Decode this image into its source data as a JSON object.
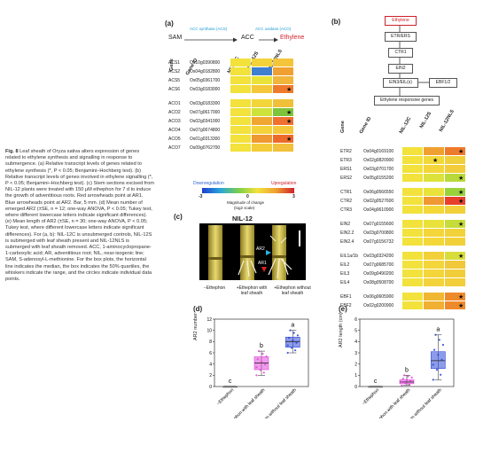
{
  "caption": {
    "label": "Fig. 8",
    "text": "Leaf sheath of Oryza sativa alters expression of genes related to ethylene synthesis and signalling in response to submergence. (a) Relative transcript levels of genes related to ethylene synthesis (*, P < 0.05; Benjamini–Hochberg test). (b) Relative transcript levels of genes involved in ethylene signalling (*, P < 0.05; Benjamini–Hochberg test). (c) Stem sections excised from NIL-12 plants were treated with 150 μM ethephon for 7 d to induce the growth of adventitious roots. Red arrowheads point at AR1. Blue arrowheads point at AR2. Bar, 5 mm. (d) Mean number of emerged AR2 (±SE, n = 12; one-way ANOVA, P < 0.05; Tukey test, where different lowercase letters indicate significant differences). (e) Mean length of AR2 (±SE, n = 30; one-way ANOVA, P < 0.05; Tukey test, where different lowercase letters indicate significant differences). For (a, b): NIL-12C is unsubmerged controls, NIL-12S is submerged with leaf sheath present and NIL-12NLS is submerged with leaf sheath removed. ACC, 1-aminocyclopropane-1-carboxylic acid; AR, adventitious root; NIL, near-isogenic line; SAM, S-adenosyl-L-methionine. For the box plots, the horizontal line indicates the median, the box indicates the 50% quartiles, the whiskers indicate the range, and the circles indicate individual data points."
  },
  "panel_a": {
    "letter": "(a)",
    "pathway": {
      "sam": "SAM",
      "acc": "ACC",
      "ethylene": "Ethylene",
      "acs_label": "ACC synthase (ACS)",
      "aco_label": "ACC oxidase (ACO)"
    },
    "headers": {
      "gene": "Gene",
      "gene_id": "Gene ID",
      "c1": "NIL-12C",
      "c2": "NIL-12S",
      "c3": "NIL-12NLS"
    },
    "rows": [
      {
        "gene": "ACS1",
        "id": "Os10g0390800",
        "colors": [
          "#f2e23b",
          "#f4d23a",
          "#f4c53a"
        ],
        "star": false
      },
      {
        "gene": "ACS2",
        "id": "Os04g0182800",
        "colors": [
          "#f2e23b",
          "#3f7fd0",
          "#f0a030"
        ],
        "star": false
      },
      {
        "gene": "ACS5",
        "id": "Os05g0361700",
        "colors": [
          "#f2e23b",
          "#e8e23a",
          "#f0b53a"
        ],
        "star": false
      },
      {
        "gene": "ACS6",
        "id": "Os03g0183000",
        "colors": [
          "#f2e23b",
          "#f4c83a",
          "#ef7a2c"
        ],
        "star": true
      },
      {
        "gene": "ACO1",
        "id": "Os03g0183300",
        "colors": [
          "#f2e23b",
          "#f2d53a",
          "#f0c03a"
        ],
        "star": false
      },
      {
        "gene": "ACO2",
        "id": "Os07g0617000",
        "colors": [
          "#f2e23b",
          "#cde23a",
          "#7fc33a"
        ],
        "star": true
      },
      {
        "gene": "ACO3",
        "id": "Os02g0341000",
        "colors": [
          "#f2e23b",
          "#f0a732",
          "#f07030"
        ],
        "star": true
      },
      {
        "gene": "ACO4",
        "id": "Os07g0674800",
        "colors": [
          "#f2e23b",
          "#f4d23a",
          "#f4c83a"
        ],
        "star": false
      },
      {
        "gene": "ACO5",
        "id": "Os01g0313300",
        "colors": [
          "#f2e23b",
          "#f09832",
          "#ee6a2a"
        ],
        "star": true
      },
      {
        "gene": "ACO7",
        "id": "Os09g0762700",
        "colors": [
          "#f2e23b",
          "#f4cc3a",
          "#f2c03a"
        ],
        "star": false
      }
    ],
    "legend": {
      "down": "Downregulation",
      "up": "Upregulation",
      "ticks": [
        "-3",
        "0",
        "3"
      ],
      "title": "Magnitude of change",
      "subtitle": "(log2 scale)"
    }
  },
  "panel_b": {
    "letter": "(b)",
    "flow": [
      "Ethylene",
      "ETR/ERS",
      "CTR1",
      "EIN2",
      "EIN3/EIL(s)",
      "EBF1/2",
      "Ethylene responsive genes"
    ],
    "headers": {
      "gene": "Gene",
      "gene_id": "Gene ID",
      "c1": "NIL-12C",
      "c2": "NIL-12S",
      "c3": "NIL-12NLS"
    },
    "rows": [
      {
        "gene": "ETR2",
        "id": "Os04g0169100",
        "colors": [
          "#f2e23b",
          "#f0a030",
          "#ee7a2c"
        ],
        "star": true
      },
      {
        "gene": "ETR3",
        "id": "Os02g0820900",
        "colors": [
          "#f2e23b",
          "#f2d93a",
          "#f0d03a"
        ],
        "star": false,
        "star_mid": true
      },
      {
        "gene": "ERS1",
        "id": "Os03g0701700",
        "colors": [
          "#f2e23b",
          "#f4d53a",
          "#f2cc3a"
        ],
        "star": false
      },
      {
        "gene": "ERS2",
        "id": "Os05g0155200",
        "colors": [
          "#f2e23b",
          "#dde23a",
          "#b8d93a"
        ],
        "star": true
      },
      {
        "gene": "CTR1",
        "id": "Os06g0566550",
        "colors": [
          "#f2e23b",
          "#e8e23a",
          "#9ad23a"
        ],
        "star": true
      },
      {
        "gene": "CTR2",
        "id": "Os02g0527600",
        "colors": [
          "#f2e23b",
          "#f09832",
          "#e8402a"
        ],
        "star": true
      },
      {
        "gene": "CTR3",
        "id": "Os04g0610900",
        "colors": [
          "#f2e23b",
          "#f4d83a",
          "#f2d03a"
        ],
        "star": false
      },
      {
        "gene": "EIN2",
        "id": "Os07g0155600",
        "colors": [
          "#f2e23b",
          "#e8e23a",
          "#c5dc3a"
        ],
        "star": true
      },
      {
        "gene": "EIN2.2",
        "id": "Os03g0700800",
        "colors": [
          "#f2e23b",
          "#f4d53a",
          "#f2d23a"
        ],
        "star": false
      },
      {
        "gene": "EIN2.4",
        "id": "Os07g0156732",
        "colors": [
          "#f2e23b",
          "#f4d83a",
          "#f2d03a"
        ],
        "star": false
      },
      {
        "gene": "EIL1a/1b",
        "id": "Os03g0324200",
        "colors": [
          "#f2e23b",
          "#f2d03a",
          "#d8dd3a"
        ],
        "star": true
      },
      {
        "gene": "EIL2",
        "id": "Os07g0685700",
        "colors": [
          "#f2e23b",
          "#f4d53a",
          "#f0c83a"
        ],
        "star": false
      },
      {
        "gene": "EIL3",
        "id": "Os09g0490200",
        "colors": [
          "#f2e23b",
          "#f4d53a",
          "#f2cd3a"
        ],
        "star": false
      },
      {
        "gene": "EIL4",
        "id": "Os08g0508700",
        "colors": [
          "#f2e23b",
          "#f4d23a",
          "#f2ce3a"
        ],
        "star": false
      },
      {
        "gene": "EBF1",
        "id": "Os06g0605900",
        "colors": [
          "#f2e23b",
          "#f0b832",
          "#ee8a2c"
        ],
        "star": true
      },
      {
        "gene": "EBF2",
        "id": "Os02g0200900",
        "colors": [
          "#f2e23b",
          "#f0b032",
          "#ee8a2c"
        ],
        "star": true
      }
    ]
  },
  "panel_c": {
    "letter": "(c)",
    "title": "NIL-12",
    "labels": {
      "ar2": "AR2",
      "ar1": "AR1"
    },
    "conditions": [
      "−Ethephon",
      "+Ethephon with leaf sheath",
      "+Ethephon without leaf sheath"
    ]
  },
  "panel_d": {
    "letter": "(d)",
    "ylabel": "AR2 number",
    "yticks": [
      "0",
      "2",
      "4",
      "6",
      "8",
      "10",
      "12"
    ],
    "groups": [
      {
        "label": "−Ethephon",
        "letter": "c",
        "color": "#7a7a7a",
        "median": 0,
        "q1": 0,
        "q3": 0,
        "min": 0,
        "max": 0
      },
      {
        "label": "+Ethephon with leaf sheath",
        "letter": "b",
        "color": "#e04ad8",
        "median": 4.2,
        "q1": 3,
        "q3": 5.3,
        "min": 2,
        "max": 6.3
      },
      {
        "label": "+Ethephon without leaf sheath",
        "letter": "a",
        "color": "#2f4ad8",
        "median": 8,
        "q1": 7,
        "q3": 8.8,
        "min": 6,
        "max": 10
      }
    ]
  },
  "panel_e": {
    "letter": "(e)",
    "ylabel": "AR2 length (cm)",
    "yticks": [
      "0",
      "1",
      "2",
      "3",
      "4",
      "5",
      "6"
    ],
    "groups": [
      {
        "label": "−Ethephon",
        "letter": "c",
        "color": "#7a7a7a",
        "median": 0,
        "q1": 0,
        "q3": 0,
        "min": 0,
        "max": 0
      },
      {
        "label": "+Ethephon with leaf sheath",
        "letter": "b",
        "color": "#e04ad8",
        "median": 0.4,
        "q1": 0.25,
        "q3": 0.6,
        "min": 0.1,
        "max": 1.0
      },
      {
        "label": "+Ethephon without leaf sheath",
        "letter": "a",
        "color": "#2f4ad8",
        "median": 2.3,
        "q1": 1.6,
        "q3": 3.1,
        "min": 0.6,
        "max": 4.6
      }
    ]
  }
}
